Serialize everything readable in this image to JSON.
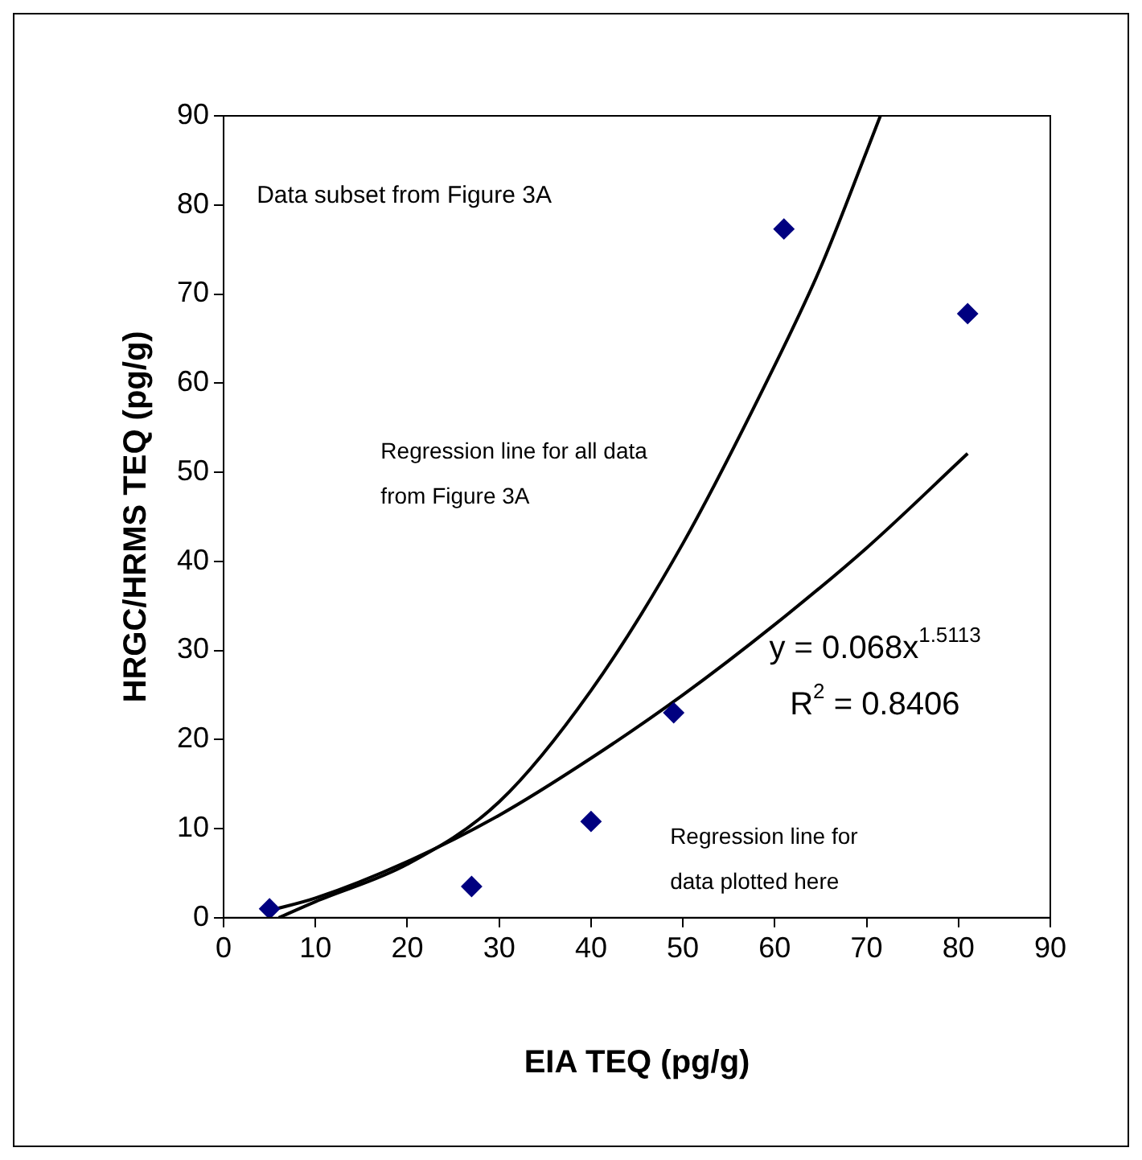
{
  "chart_data": {
    "type": "scatter",
    "xlabel": "EIA TEQ (pg/g)",
    "ylabel": "HRGC/HRMS TEQ (pg/g)",
    "xlim": [
      0,
      90
    ],
    "xticks": [
      0,
      10,
      20,
      30,
      40,
      50,
      60,
      70,
      80,
      90
    ],
    "ylim": [
      0,
      90
    ],
    "yticks": [
      0,
      10,
      20,
      30,
      40,
      50,
      60,
      70,
      80,
      90
    ],
    "grid": false,
    "legend": false,
    "marker": "diamond",
    "series": [
      {
        "color": "#000080",
        "x": [
          5,
          27,
          40,
          49,
          61,
          81
        ],
        "values": [
          1,
          3.5,
          10.8,
          23,
          77.3,
          67.8
        ]
      },
      {
        "type": "line",
        "color": "#000000",
        "marker": "none",
        "x": [
          6,
          10,
          20,
          30,
          40,
          50,
          60,
          65,
          70,
          71.5
        ],
        "values": [
          0,
          1.8,
          6,
          13,
          25.5,
          42,
          62,
          73,
          86,
          90
        ]
      },
      {
        "type": "line",
        "color": "#000000",
        "marker": "none",
        "x": [
          5,
          10,
          20,
          30,
          40,
          50,
          60,
          70,
          81
        ],
        "values": [
          0.8,
          2.2,
          6.3,
          11.5,
          17.9,
          25,
          32.9,
          41.5,
          52.1
        ]
      }
    ],
    "annotations": [
      "Data subset from Figure 3A",
      "Regression line for all data from Figure 3A",
      "y = 0.068x$^{1.5113}$",
      "R$^{2}$ = 0.8406",
      "Regression line for data plotted here"
    ]
  }
}
